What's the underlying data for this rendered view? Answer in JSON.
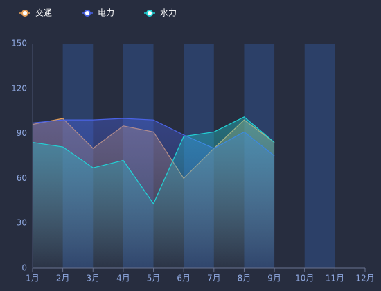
{
  "chart_data": {
    "type": "line",
    "categories": [
      "1月",
      "2月",
      "3月",
      "4月",
      "5月",
      "6月",
      "7月",
      "8月",
      "9月",
      "10月",
      "11月",
      "12月"
    ],
    "series": [
      {
        "name": "交通",
        "color": "#e9a15a",
        "values": [
          96,
          100,
          80,
          95,
          91,
          60,
          80,
          99,
          84,
          null,
          null,
          null
        ]
      },
      {
        "name": "电力",
        "color": "#4a63e6",
        "values": [
          97,
          99,
          99,
          100,
          99,
          89,
          80,
          91,
          75,
          null,
          null,
          null
        ]
      },
      {
        "name": "水力",
        "color": "#22d3d6",
        "values": [
          84,
          81,
          67,
          72,
          43,
          88,
          91,
          101,
          84,
          null,
          null,
          null
        ]
      }
    ],
    "ylim": [
      0,
      150
    ],
    "yticks": [
      0,
      30,
      60,
      90,
      120,
      150
    ],
    "split_area_color": "#2e4470",
    "area_fill": true,
    "legend": "top-left"
  }
}
